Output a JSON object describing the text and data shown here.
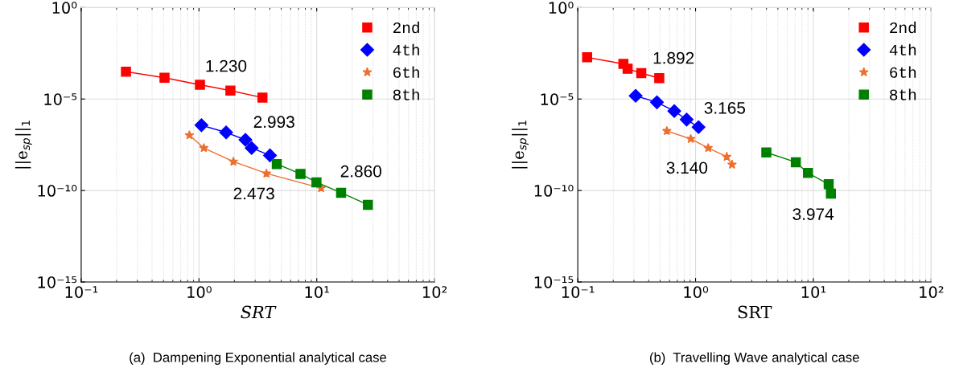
{
  "chart_data": [
    {
      "type": "line",
      "xlabel": "SRT",
      "ylabel": "||e$_{sp}$||$_{1}$",
      "log": "xy",
      "grid": true,
      "legend": "top right",
      "line_style": "solid",
      "xlim": [
        0.1,
        100
      ],
      "xticks": [
        {
          "value": 0.1,
          "label": "10⁻¹"
        },
        {
          "value": 1,
          "label": "10⁰"
        },
        {
          "value": 10,
          "label": "10¹"
        },
        {
          "value": 100,
          "label": "10²"
        }
      ],
      "ylim": [
        1e-15,
        1
      ],
      "yticks": [
        {
          "value": 1e-15,
          "label": "10⁻¹⁵"
        },
        {
          "value": 1e-10,
          "label": "10⁻¹⁰"
        },
        {
          "value": 1e-05,
          "label": "10⁻⁵"
        },
        {
          "value": 1,
          "label": "10⁰"
        }
      ],
      "series": [
        {
          "name": "2nd",
          "color": "#ff0000",
          "marker": "square",
          "x": [
            0.24,
            0.51,
            1.02,
            1.85,
            3.46
          ],
          "values": [
            0.00031,
            0.000145,
            6e-05,
            2.9e-05,
            1.2e-05
          ]
        },
        {
          "name": "4th",
          "color": "#0000ff",
          "marker": "diamond",
          "x": [
            1.05,
            1.7,
            2.48,
            2.8,
            4.01
          ],
          "values": [
            3.7e-07,
            1.5e-07,
            5.9e-08,
            2.1e-08,
            8.3e-09
          ]
        },
        {
          "name": "6th",
          "color": "#ee6e2e",
          "marker": "star",
          "x": [
            0.83,
            1.1,
            1.96,
            3.74,
            10.9
          ],
          "values": [
            1.05e-07,
            2.1e-08,
            3.8e-09,
            8.5e-10,
            1.35e-10
          ]
        },
        {
          "name": "8th",
          "color": "#008000",
          "marker": "square",
          "x": [
            4.58,
            7.28,
            9.95,
            16.1,
            27.2
          ],
          "values": [
            2.8e-09,
            8.1e-10,
            2.8e-10,
            7.5e-11,
            1.65e-11
          ]
        }
      ],
      "annotations": [
        "1.230",
        "2.993",
        "2.860",
        "2.473",
        "(a)  Dampening Exponential analytical case"
      ]
    },
    {
      "type": "line",
      "xlabel": "SRT",
      "ylabel": "||e$_{sp}$||$_{1}$",
      "log": "xy",
      "grid": true,
      "legend": "top right",
      "line_style": "solid",
      "xlim": [
        0.1,
        100
      ],
      "xticks": [
        {
          "value": 0.1,
          "label": "10⁻¹"
        },
        {
          "value": 1,
          "label": "10⁰"
        },
        {
          "value": 10,
          "label": "10¹"
        },
        {
          "value": 100,
          "label": "10²"
        }
      ],
      "ylim": [
        1e-15,
        1
      ],
      "yticks": [
        {
          "value": 1e-15,
          "label": "10⁻¹⁵"
        },
        {
          "value": 1e-10,
          "label": "10⁻¹⁰"
        },
        {
          "value": 1e-05,
          "label": "10⁻⁵"
        },
        {
          "value": 1,
          "label": "10⁰"
        }
      ],
      "series": [
        {
          "name": "2nd",
          "color": "#ff0000",
          "marker": "square",
          "x": [
            0.12,
            0.244,
            0.265,
            0.346,
            0.492
          ],
          "values": [
            0.0019,
            0.00083,
            0.00045,
            0.00026,
            0.000137
          ]
        },
        {
          "name": "4th",
          "color": "#0000ff",
          "marker": "diamond",
          "x": [
            0.31,
            0.47,
            0.66,
            0.84,
            1.06
          ],
          "values": [
            1.5e-05,
            6.6e-06,
            2.2e-06,
            7.5e-07,
            2.9e-07
          ]
        },
        {
          "name": "6th",
          "color": "#ee6e2e",
          "marker": "star",
          "x": [
            0.57,
            0.91,
            1.28,
            1.84,
            2.04
          ],
          "values": [
            1.8e-07,
            6.6e-08,
            2.1e-08,
            7e-09,
            2.6e-09
          ]
        },
        {
          "name": "8th",
          "color": "#008000",
          "marker": "square",
          "x": [
            3.99,
            7.1,
            9.0,
            13.5,
            14.1
          ],
          "values": [
            1.2e-08,
            3.5e-09,
            9.1e-10,
            2.2e-10,
            6.7e-11
          ]
        }
      ],
      "annotations": [
        "1.892",
        "3.165",
        "3.140",
        "3.974",
        "(b)  Travelling Wave analytical case"
      ]
    }
  ]
}
